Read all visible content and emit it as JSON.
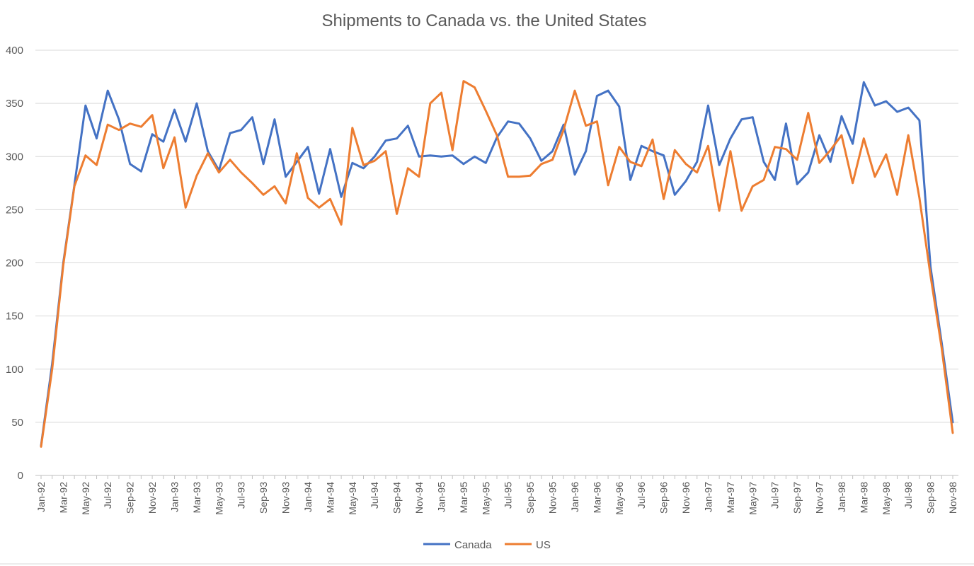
{
  "chart_data": {
    "type": "line",
    "title": "Shipments to Canada vs. the United States",
    "xlabel": "",
    "ylabel": "",
    "ylim": [
      0,
      400
    ],
    "yticks": [
      0,
      50,
      100,
      150,
      200,
      250,
      300,
      350,
      400
    ],
    "grid": true,
    "legend_position": "bottom",
    "x": [
      "Jan-92",
      "Feb-92",
      "Mar-92",
      "Apr-92",
      "May-92",
      "Jun-92",
      "Jul-92",
      "Aug-92",
      "Sep-92",
      "Oct-92",
      "Nov-92",
      "Dec-92",
      "Jan-93",
      "Feb-93",
      "Mar-93",
      "Apr-93",
      "May-93",
      "Jun-93",
      "Jul-93",
      "Aug-93",
      "Sep-93",
      "Oct-93",
      "Nov-93",
      "Dec-93",
      "Jan-94",
      "Feb-94",
      "Mar-94",
      "Apr-94",
      "May-94",
      "Jun-94",
      "Jul-94",
      "Aug-94",
      "Sep-94",
      "Oct-94",
      "Nov-94",
      "Dec-94",
      "Jan-95",
      "Feb-95",
      "Mar-95",
      "Apr-95",
      "May-95",
      "Jun-95",
      "Jul-95",
      "Aug-95",
      "Sep-95",
      "Oct-95",
      "Nov-95",
      "Dec-95",
      "Jan-96",
      "Feb-96",
      "Mar-96",
      "Apr-96",
      "May-96",
      "Jun-96",
      "Jul-96",
      "Aug-96",
      "Sep-96",
      "Oct-96",
      "Nov-96",
      "Dec-96",
      "Jan-97",
      "Feb-97",
      "Mar-97",
      "Apr-97",
      "May-97",
      "Jun-97",
      "Jul-97",
      "Aug-97",
      "Sep-97",
      "Oct-97",
      "Nov-97",
      "Dec-97",
      "Jan-98",
      "Feb-98",
      "Mar-98",
      "Apr-98",
      "May-98",
      "Jun-98",
      "Jul-98",
      "Aug-98",
      "Sep-98",
      "Oct-98",
      "Nov-98"
    ],
    "x_tick_labels": [
      "Jan-92",
      "Mar-92",
      "May-92",
      "Jul-92",
      "Sep-92",
      "Nov-92",
      "Jan-93",
      "Mar-93",
      "May-93",
      "Jul-93",
      "Sep-93",
      "Nov-93",
      "Jan-94",
      "Mar-94",
      "May-94",
      "Jul-94",
      "Sep-94",
      "Nov-94",
      "Jan-95",
      "Mar-95",
      "May-95",
      "Jul-95",
      "Sep-95",
      "Nov-95",
      "Jan-96",
      "Mar-96",
      "May-96",
      "Jul-96",
      "Sep-96",
      "Nov-96",
      "Jan-97",
      "Mar-97",
      "May-97",
      "Jul-97",
      "Sep-97",
      "Nov-97",
      "Jan-98",
      "Mar-98",
      "May-98",
      "Jul-98",
      "Sep-98",
      "Nov-98"
    ],
    "series": [
      {
        "name": "Canada",
        "color": "#4472C4",
        "values": [
          28,
          105,
          200,
          273,
          348,
          317,
          362,
          335,
          293,
          286,
          321,
          314,
          344,
          314,
          350,
          305,
          287,
          322,
          325,
          337,
          293,
          335,
          281,
          295,
          309,
          265,
          307,
          262,
          294,
          289,
          300,
          315,
          317,
          329,
          300,
          301,
          300,
          301,
          293,
          300,
          294,
          318,
          333,
          331,
          317,
          296,
          305,
          330,
          283,
          305,
          357,
          362,
          347,
          278,
          310,
          305,
          301,
          264,
          277,
          295,
          348,
          292,
          317,
          335,
          337,
          295,
          278,
          331,
          274,
          285,
          320,
          295,
          338,
          312,
          370,
          348,
          352,
          342,
          346,
          334,
          196,
          125,
          50
        ]
      },
      {
        "name": "US",
        "color": "#ED7D31",
        "values": [
          27,
          100,
          198,
          272,
          301,
          292,
          330,
          325,
          331,
          328,
          339,
          289,
          318,
          252,
          282,
          303,
          285,
          297,
          285,
          275,
          264,
          272,
          256,
          303,
          261,
          252,
          260,
          236,
          327,
          292,
          296,
          305,
          246,
          289,
          281,
          350,
          360,
          306,
          371,
          365,
          343,
          320,
          281,
          281,
          282,
          293,
          297,
          325,
          362,
          329,
          333,
          273,
          309,
          295,
          291,
          316,
          260,
          306,
          293,
          285,
          310,
          249,
          305,
          249,
          272,
          278,
          309,
          307,
          297,
          341,
          294,
          306,
          320,
          275,
          317,
          281,
          302,
          264,
          320,
          261,
          188,
          120,
          40
        ]
      }
    ]
  }
}
